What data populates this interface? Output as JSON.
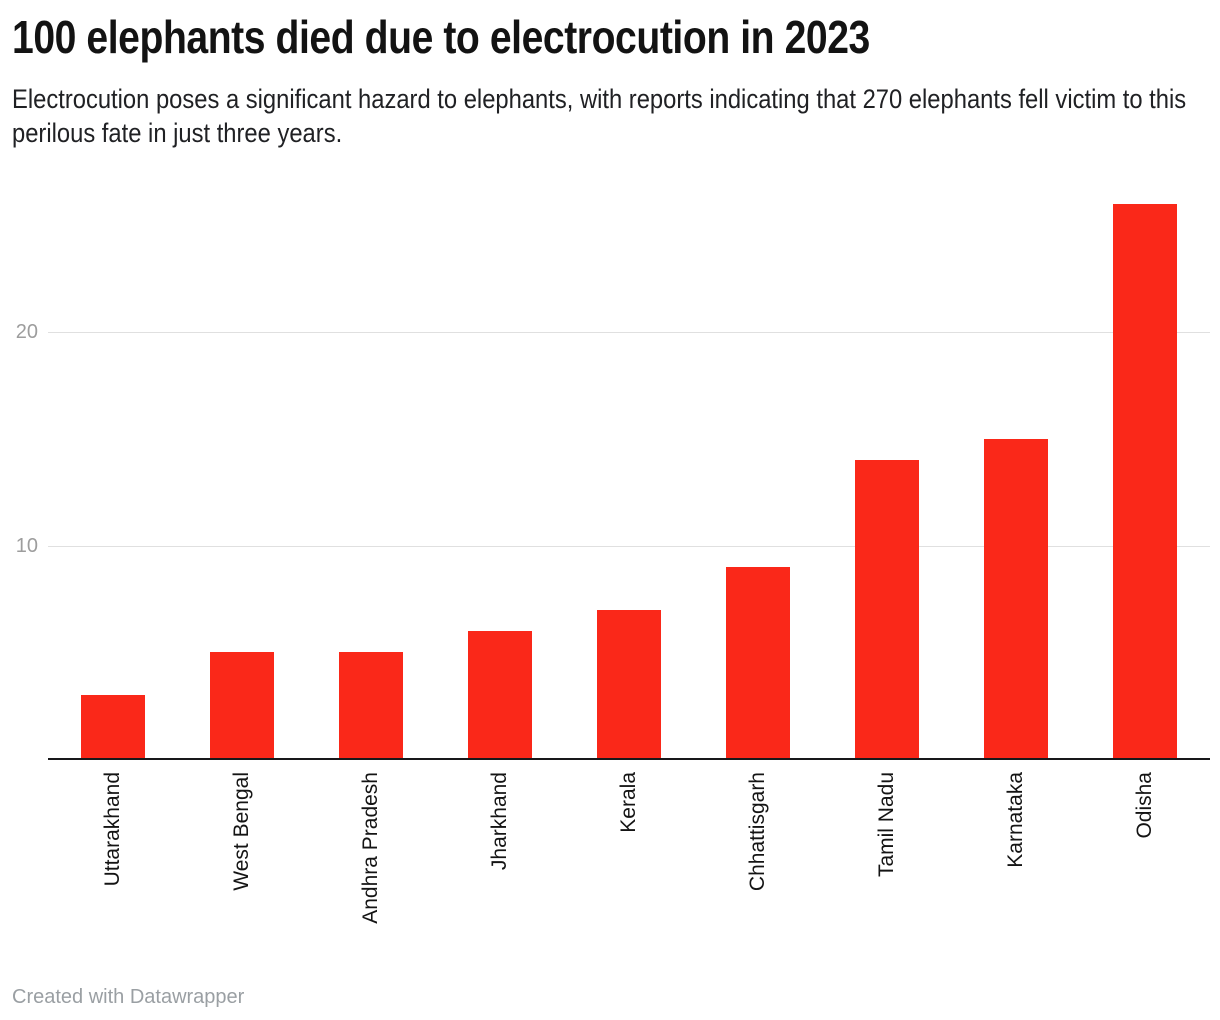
{
  "header": {
    "title": "100 elephants died due to electrocution in 2023",
    "subtitle": "Electrocution poses a significant hazard to elephants, with reports indicating that 270 elephants fell victim to this perilous fate in just three years."
  },
  "footer": {
    "attribution": "Created with Datawrapper"
  },
  "chart_data": {
    "type": "bar",
    "title": "100 elephants died due to electrocution in 2023",
    "subtitle": "Electrocution poses a significant hazard to elephants, with reports indicating that 270 elephants fell victim to this perilous fate in just three years.",
    "categories": [
      "Uttarakhand",
      "West Bengal",
      "Andhra Pradesh",
      "Jharkhand",
      "Kerala",
      "Chhattisgarh",
      "Tamil Nadu",
      "Karnataka",
      "Odisha"
    ],
    "values": [
      3,
      5,
      5,
      6,
      7,
      9,
      14,
      15,
      26
    ],
    "xlabel": "",
    "ylabel": "",
    "y_ticks": [
      10,
      20
    ],
    "ylim": [
      0,
      26
    ],
    "grid": "horizontal-only",
    "legend": "none",
    "x_label_rotation": -90,
    "bar_color": "#fa2819",
    "gridline_color": "#e0e0e0",
    "axis_line_color": "#18181a",
    "y_tick_label_color": "#9d9d9d"
  }
}
